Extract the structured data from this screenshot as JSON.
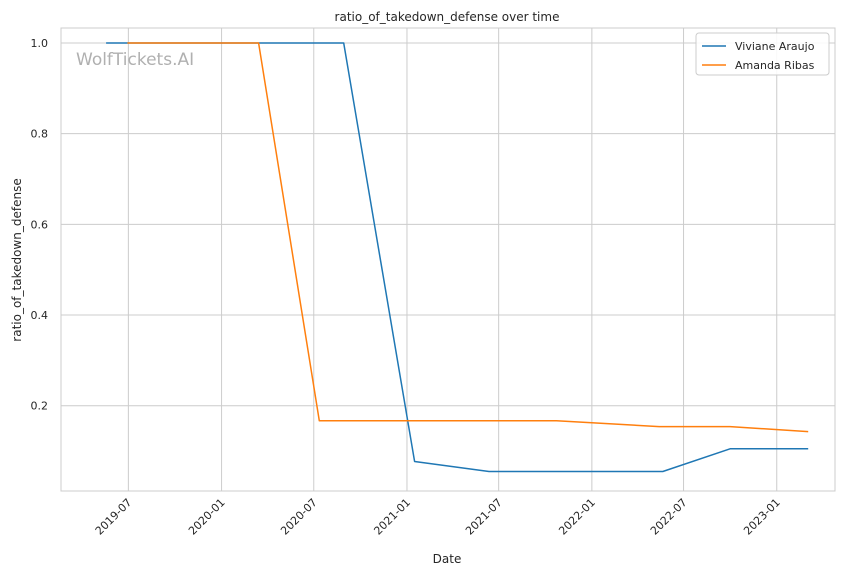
{
  "chart_data": {
    "type": "line",
    "title": "ratio_of_takedown_defense over time",
    "xlabel": "Date",
    "ylabel": "ratio_of_takedown_defense",
    "watermark": "WolfTickets.AI",
    "x_ticks": [
      "2019-07",
      "2020-01",
      "2020-07",
      "2021-01",
      "2021-07",
      "2022-01",
      "2022-07",
      "2023-01"
    ],
    "y_ticks": [
      "0.2",
      "0.4",
      "0.6",
      "0.8",
      "1.0"
    ],
    "xlim": [
      "2019-02-18",
      "2023-04-26"
    ],
    "ylim": [
      0.012,
      1.033
    ],
    "grid": true,
    "legend_position": "top-right",
    "series": [
      {
        "name": "Viviane Araujo",
        "color": "#1f77b4",
        "x": [
          "2019-05-18",
          "2020-08-29",
          "2021-01-16",
          "2021-06-12",
          "2022-05-21",
          "2022-10-01",
          "2023-03-04"
        ],
        "y": [
          1.0,
          1.0,
          0.077,
          0.055,
          0.055,
          0.105,
          0.105
        ]
      },
      {
        "name": "Amanda Ribas",
        "color": "#ff7f0e",
        "x": [
          "2019-06-29",
          "2020-03-14",
          "2020-07-12",
          "2021-10-23",
          "2022-05-14",
          "2022-10-01",
          "2023-03-04"
        ],
        "y": [
          1.0,
          1.0,
          0.167,
          0.167,
          0.154,
          0.154,
          0.143
        ]
      }
    ]
  }
}
